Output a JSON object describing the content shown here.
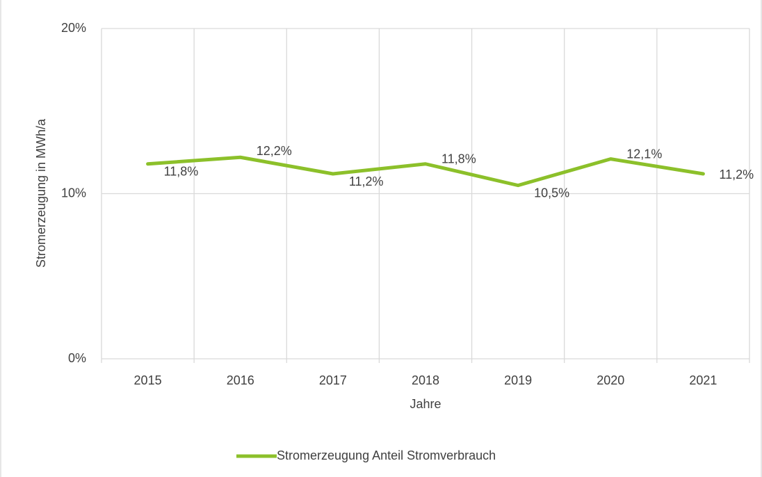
{
  "chart_data": {
    "type": "line",
    "x_label": "Jahre",
    "y_label": "Stromerzeugung in MWh/a",
    "categories": [
      "2015",
      "2016",
      "2017",
      "2018",
      "2019",
      "2020",
      "2021"
    ],
    "series": [
      {
        "name": "Stromerzeugung Anteil Stromverbrauch",
        "color": "#8cc02a",
        "values": [
          11.8,
          12.2,
          11.2,
          11.8,
          10.5,
          12.1,
          11.2
        ],
        "value_labels": [
          "11,8%",
          "12,2%",
          "11,2%",
          "11,8%",
          "10,5%",
          "12,1%",
          "11,2%"
        ]
      }
    ],
    "ylim": [
      0,
      20
    ],
    "yticks": [
      {
        "value": 0,
        "label": "0%"
      },
      {
        "value": 10,
        "label": "10%"
      },
      {
        "value": 20,
        "label": "20%"
      }
    ],
    "grid": true,
    "legend": "bottom"
  }
}
